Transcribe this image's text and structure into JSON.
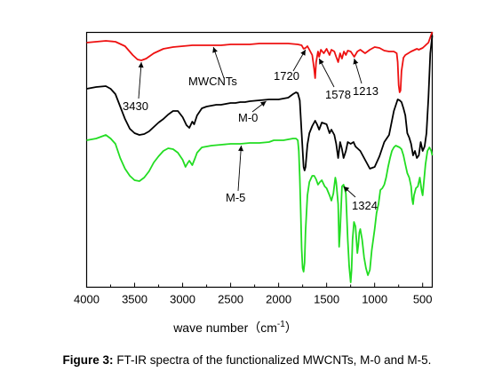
{
  "chart_data": {
    "type": "line",
    "xlabel": "wave number（cm",
    "xlabel_sup": "-1",
    "xlabel_close": "）",
    "xlim": [
      4000,
      400
    ],
    "x_ticks": [
      4000,
      3500,
      3000,
      2500,
      2000,
      1500,
      1000,
      500
    ],
    "y_ticks_shown": false,
    "series": [
      {
        "name": "MWCNTs",
        "color": "#ee1111",
        "points": [
          [
            4000,
            48
          ],
          [
            3900,
            47
          ],
          [
            3800,
            46
          ],
          [
            3700,
            47
          ],
          [
            3600,
            52
          ],
          [
            3520,
            62
          ],
          [
            3470,
            67
          ],
          [
            3430,
            68
          ],
          [
            3380,
            66
          ],
          [
            3300,
            60
          ],
          [
            3200,
            55
          ],
          [
            3100,
            53
          ],
          [
            3000,
            52
          ],
          [
            2900,
            51
          ],
          [
            2800,
            51
          ],
          [
            2700,
            51
          ],
          [
            2600,
            51
          ],
          [
            2500,
            50
          ],
          [
            2400,
            50
          ],
          [
            2300,
            50
          ],
          [
            2200,
            49
          ],
          [
            2100,
            49
          ],
          [
            2000,
            49
          ],
          [
            1900,
            49
          ],
          [
            1800,
            50
          ],
          [
            1760,
            51
          ],
          [
            1740,
            55
          ],
          [
            1720,
            54
          ],
          [
            1700,
            52
          ],
          [
            1680,
            56
          ],
          [
            1650,
            62
          ],
          [
            1630,
            78
          ],
          [
            1620,
            88
          ],
          [
            1610,
            70
          ],
          [
            1590,
            58
          ],
          [
            1578,
            64
          ],
          [
            1560,
            56
          ],
          [
            1530,
            60
          ],
          [
            1500,
            55
          ],
          [
            1470,
            62
          ],
          [
            1450,
            56
          ],
          [
            1420,
            58
          ],
          [
            1400,
            64
          ],
          [
            1380,
            70
          ],
          [
            1360,
            60
          ],
          [
            1340,
            66
          ],
          [
            1320,
            58
          ],
          [
            1300,
            62
          ],
          [
            1280,
            57
          ],
          [
            1250,
            58
          ],
          [
            1213,
            64
          ],
          [
            1180,
            58
          ],
          [
            1150,
            56
          ],
          [
            1100,
            60
          ],
          [
            1050,
            56
          ],
          [
            1000,
            53
          ],
          [
            950,
            54
          ],
          [
            900,
            57
          ],
          [
            850,
            58
          ],
          [
            800,
            58
          ],
          [
            770,
            60
          ],
          [
            760,
            70
          ],
          [
            750,
            96
          ],
          [
            740,
            104
          ],
          [
            730,
            102
          ],
          [
            720,
            80
          ],
          [
            700,
            65
          ],
          [
            680,
            62
          ],
          [
            650,
            60
          ],
          [
            620,
            58
          ],
          [
            600,
            57
          ],
          [
            580,
            56
          ],
          [
            560,
            55
          ],
          [
            540,
            56
          ],
          [
            520,
            55
          ],
          [
            500,
            54
          ],
          [
            480,
            52
          ],
          [
            460,
            50
          ],
          [
            440,
            48
          ],
          [
            420,
            42
          ],
          [
            400,
            36
          ]
        ]
      },
      {
        "name": "M-0",
        "color": "#000000",
        "points": [
          [
            4000,
            100
          ],
          [
            3900,
            98
          ],
          [
            3800,
            97
          ],
          [
            3750,
            100
          ],
          [
            3700,
            106
          ],
          [
            3650,
            120
          ],
          [
            3600,
            134
          ],
          [
            3550,
            145
          ],
          [
            3500,
            150
          ],
          [
            3450,
            152
          ],
          [
            3400,
            151
          ],
          [
            3350,
            148
          ],
          [
            3300,
            143
          ],
          [
            3250,
            138
          ],
          [
            3200,
            134
          ],
          [
            3150,
            129
          ],
          [
            3100,
            125
          ],
          [
            3050,
            125
          ],
          [
            3000,
            132
          ],
          [
            2960,
            141
          ],
          [
            2930,
            144
          ],
          [
            2900,
            137
          ],
          [
            2880,
            140
          ],
          [
            2850,
            130
          ],
          [
            2800,
            122
          ],
          [
            2750,
            120
          ],
          [
            2700,
            119
          ],
          [
            2650,
            118
          ],
          [
            2600,
            118
          ],
          [
            2550,
            117
          ],
          [
            2500,
            116
          ],
          [
            2450,
            116
          ],
          [
            2400,
            115
          ],
          [
            2350,
            115
          ],
          [
            2300,
            114
          ],
          [
            2200,
            113
          ],
          [
            2100,
            112
          ],
          [
            2000,
            112
          ],
          [
            1950,
            111
          ],
          [
            1900,
            110
          ],
          [
            1850,
            106
          ],
          [
            1820,
            104
          ],
          [
            1800,
            105
          ],
          [
            1780,
            113
          ],
          [
            1760,
            150
          ],
          [
            1740,
            188
          ],
          [
            1730,
            192
          ],
          [
            1720,
            188
          ],
          [
            1700,
            163
          ],
          [
            1680,
            150
          ],
          [
            1650,
            142
          ],
          [
            1620,
            136
          ],
          [
            1600,
            140
          ],
          [
            1578,
            146
          ],
          [
            1550,
            138
          ],
          [
            1500,
            140
          ],
          [
            1470,
            150
          ],
          [
            1450,
            146
          ],
          [
            1420,
            152
          ],
          [
            1400,
            162
          ],
          [
            1380,
            178
          ],
          [
            1360,
            160
          ],
          [
            1340,
            168
          ],
          [
            1324,
            178
          ],
          [
            1300,
            170
          ],
          [
            1280,
            160
          ],
          [
            1250,
            162
          ],
          [
            1220,
            160
          ],
          [
            1200,
            165
          ],
          [
            1150,
            170
          ],
          [
            1100,
            180
          ],
          [
            1050,
            190
          ],
          [
            1000,
            188
          ],
          [
            950,
            176
          ],
          [
            900,
            160
          ],
          [
            850,
            152
          ],
          [
            800,
            125
          ],
          [
            760,
            112
          ],
          [
            740,
            113
          ],
          [
            720,
            115
          ],
          [
            700,
            122
          ],
          [
            680,
            130
          ],
          [
            660,
            150
          ],
          [
            640,
            155
          ],
          [
            620,
            162
          ],
          [
            600,
            175
          ],
          [
            580,
            170
          ],
          [
            560,
            178
          ],
          [
            540,
            175
          ],
          [
            520,
            160
          ],
          [
            500,
            170
          ],
          [
            480,
            165
          ],
          [
            460,
            150
          ],
          [
            440,
            110
          ],
          [
            420,
            60
          ],
          [
            400,
            40
          ]
        ]
      },
      {
        "name": "M-5",
        "color": "#22dd22",
        "points": [
          [
            4000,
            158
          ],
          [
            3900,
            156
          ],
          [
            3800,
            152
          ],
          [
            3750,
            156
          ],
          [
            3700,
            162
          ],
          [
            3650,
            178
          ],
          [
            3600,
            190
          ],
          [
            3550,
            198
          ],
          [
            3500,
            203
          ],
          [
            3450,
            204
          ],
          [
            3400,
            200
          ],
          [
            3350,
            193
          ],
          [
            3300,
            183
          ],
          [
            3250,
            176
          ],
          [
            3200,
            170
          ],
          [
            3150,
            167
          ],
          [
            3100,
            168
          ],
          [
            3050,
            172
          ],
          [
            3000,
            180
          ],
          [
            2970,
            188
          ],
          [
            2950,
            184
          ],
          [
            2930,
            181
          ],
          [
            2900,
            186
          ],
          [
            2870,
            178
          ],
          [
            2850,
            172
          ],
          [
            2800,
            166
          ],
          [
            2700,
            164
          ],
          [
            2600,
            163
          ],
          [
            2500,
            162
          ],
          [
            2400,
            162
          ],
          [
            2300,
            161
          ],
          [
            2200,
            161
          ],
          [
            2100,
            160
          ],
          [
            2050,
            158
          ],
          [
            2000,
            158
          ],
          [
            1950,
            158
          ],
          [
            1900,
            157
          ],
          [
            1850,
            156
          ],
          [
            1820,
            156
          ],
          [
            1800,
            158
          ],
          [
            1790,
            170
          ],
          [
            1780,
            200
          ],
          [
            1770,
            240
          ],
          [
            1760,
            280
          ],
          [
            1750,
            302
          ],
          [
            1740,
            306
          ],
          [
            1730,
            296
          ],
          [
            1720,
            260
          ],
          [
            1700,
            220
          ],
          [
            1680,
            205
          ],
          [
            1650,
            198
          ],
          [
            1630,
            198
          ],
          [
            1610,
            202
          ],
          [
            1590,
            208
          ],
          [
            1570,
            205
          ],
          [
            1550,
            203
          ],
          [
            1520,
            210
          ],
          [
            1500,
            212
          ],
          [
            1470,
            220
          ],
          [
            1450,
            226
          ],
          [
            1430,
            218
          ],
          [
            1410,
            200
          ],
          [
            1400,
            205
          ],
          [
            1380,
            230
          ],
          [
            1370,
            278
          ],
          [
            1360,
            260
          ],
          [
            1340,
            210
          ],
          [
            1324,
            208
          ],
          [
            1300,
            218
          ],
          [
            1280,
            270
          ],
          [
            1265,
            300
          ],
          [
            1250,
            318
          ],
          [
            1240,
            304
          ],
          [
            1230,
            270
          ],
          [
            1215,
            250
          ],
          [
            1200,
            255
          ],
          [
            1180,
            285
          ],
          [
            1170,
            276
          ],
          [
            1160,
            262
          ],
          [
            1150,
            258
          ],
          [
            1130,
            270
          ],
          [
            1110,
            290
          ],
          [
            1090,
            302
          ],
          [
            1070,
            310
          ],
          [
            1050,
            304
          ],
          [
            1030,
            282
          ],
          [
            1000,
            258
          ],
          [
            980,
            240
          ],
          [
            960,
            230
          ],
          [
            940,
            214
          ],
          [
            920,
            212
          ],
          [
            900,
            208
          ],
          [
            880,
            200
          ],
          [
            860,
            188
          ],
          [
            840,
            178
          ],
          [
            820,
            170
          ],
          [
            800,
            166
          ],
          [
            780,
            164
          ],
          [
            760,
            165
          ],
          [
            740,
            166
          ],
          [
            720,
            168
          ],
          [
            700,
            175
          ],
          [
            680,
            185
          ],
          [
            660,
            195
          ],
          [
            640,
            200
          ],
          [
            620,
            210
          ],
          [
            610,
            224
          ],
          [
            600,
            230
          ],
          [
            590,
            220
          ],
          [
            570,
            212
          ],
          [
            550,
            210
          ],
          [
            530,
            200
          ],
          [
            510,
            215
          ],
          [
            500,
            220
          ],
          [
            490,
            208
          ],
          [
            470,
            185
          ],
          [
            450,
            170
          ],
          [
            430,
            166
          ],
          [
            410,
            170
          ],
          [
            400,
            175
          ]
        ]
      }
    ],
    "annotations": [
      {
        "text": "MWCNTs",
        "arrow_to": [
          2680,
          51
        ]
      },
      {
        "text": "1720",
        "arrow_to": [
          1720,
          54
        ]
      },
      {
        "text": "3430",
        "arrow_to": [
          3430,
          68
        ]
      },
      {
        "text": "M-0",
        "arrow_to": [
          2130,
          112
        ]
      },
      {
        "text": "1578",
        "arrow_to": [
          1578,
          64
        ]
      },
      {
        "text": "1213",
        "arrow_to": [
          1213,
          64
        ]
      },
      {
        "text": "M-5",
        "arrow_to": [
          2390,
          162
        ]
      },
      {
        "text": "1324",
        "arrow_to": [
          1324,
          208
        ]
      }
    ]
  },
  "caption": {
    "label": "Figure 3:",
    "text": " FT-IR spectra of the functionalized MWCNTs, M-0 and M-5."
  }
}
